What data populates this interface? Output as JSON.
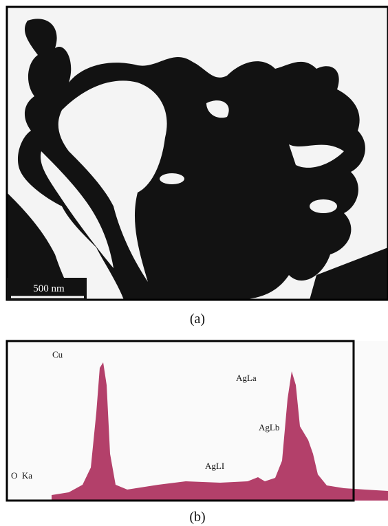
{
  "panel_a": {
    "scale_bar": "500 nm",
    "caption": "(a)"
  },
  "panel_b": {
    "labels": {
      "cu": "Cu",
      "agla": "AgLa",
      "aglb": "AgLb",
      "agli": "AgLI",
      "oka": "O  Ka"
    },
    "caption": "(b)"
  }
}
